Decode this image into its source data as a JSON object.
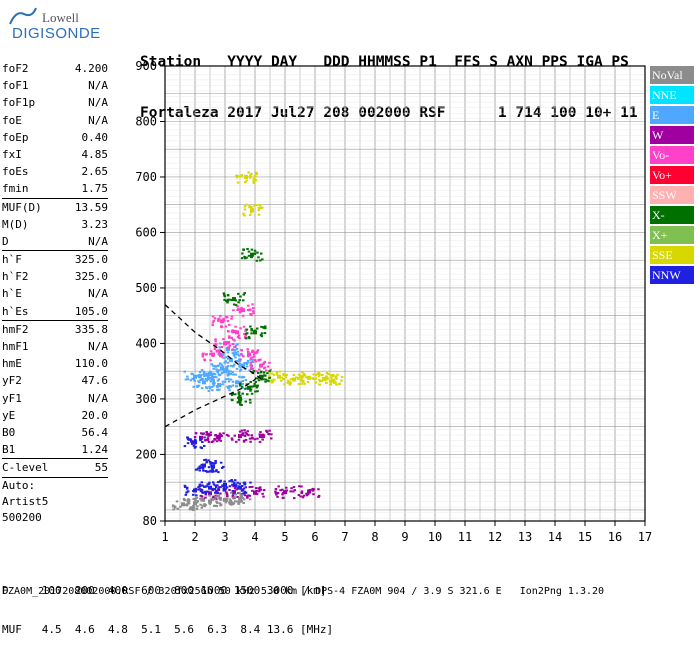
{
  "logo": {
    "line1": "Lowell",
    "line2": "DIGISONDE"
  },
  "header": {
    "row1": "Station   YYYY DAY   DDD HHMMSS P1  FFS S AXN PPS IGA PS",
    "row2": "Fortaleza 2017 Jul27 208 002000 RSF      1 714 100 10+ 11"
  },
  "params": {
    "group1": [
      {
        "k": "foF2",
        "v": "4.200"
      },
      {
        "k": "foF1",
        "v": "N/A"
      },
      {
        "k": "foF1p",
        "v": "N/A"
      },
      {
        "k": "foE",
        "v": "N/A"
      },
      {
        "k": "foEp",
        "v": "0.40"
      },
      {
        "k": "fxI",
        "v": "4.85"
      },
      {
        "k": "foEs",
        "v": "2.65"
      },
      {
        "k": "fmin",
        "v": "1.75"
      }
    ],
    "group2": [
      {
        "k": "MUF(D)",
        "v": "13.59"
      },
      {
        "k": "M(D)",
        "v": "3.23"
      },
      {
        "k": "D",
        "v": "N/A"
      }
    ],
    "group3": [
      {
        "k": "h`F",
        "v": "325.0"
      },
      {
        "k": "h`F2",
        "v": "325.0"
      },
      {
        "k": "h`E",
        "v": "N/A"
      },
      {
        "k": "h`Es",
        "v": "105.0"
      }
    ],
    "group4": [
      {
        "k": "hmF2",
        "v": "335.8"
      },
      {
        "k": "hmF1",
        "v": "N/A"
      },
      {
        "k": "hmE",
        "v": "110.0"
      },
      {
        "k": "yF2",
        "v": "47.6"
      },
      {
        "k": "yF1",
        "v": "N/A"
      },
      {
        "k": "yE",
        "v": "20.0"
      },
      {
        "k": "B0",
        "v": "56.4"
      },
      {
        "k": "B1",
        "v": "1.24"
      }
    ],
    "group5": [
      {
        "k": "C-level",
        "v": "55"
      }
    ],
    "auto": [
      "Auto:",
      "Artist5",
      "500200"
    ]
  },
  "footer": {
    "row1": "D     100  200  400  600  800 1000 1500 3000 [km]",
    "row2": "MUF   4.5  4.6  4.8  5.1  5.6  6.3  8.4 13.6 [MHz]"
  },
  "fileline": "FZA0M_2017208002000.RSF / 320fx256h 50 kHz 5.0 km / DPS-4 FZA0M 904 / 3.9 S 321.6 E   Ion2Png 1.3.20",
  "legend": [
    {
      "label": "NoVal",
      "color": "#8c8c8c"
    },
    {
      "label": "NNE",
      "color": "#00e5ff"
    },
    {
      "label": "E",
      "color": "#4fa8ff"
    },
    {
      "label": "W",
      "color": "#a000a0"
    },
    {
      "label": "Vo-",
      "color": "#ff40c8"
    },
    {
      "label": "Vo+",
      "color": "#ff0030"
    },
    {
      "label": "SSW",
      "color": "#ffb0b0"
    },
    {
      "label": "X-",
      "color": "#007000"
    },
    {
      "label": "X+",
      "color": "#80c050"
    },
    {
      "label": "SSE",
      "color": "#d8d800"
    },
    {
      "label": "NNW",
      "color": "#2020e0"
    }
  ],
  "chart_data": {
    "type": "scatter",
    "title": "",
    "xlabel": "",
    "ylabel": "",
    "xlim": [
      1,
      17
    ],
    "ylim": [
      80,
      900
    ],
    "x_ticks": [
      1,
      2,
      3,
      4,
      5,
      6,
      7,
      8,
      9,
      10,
      11,
      12,
      13,
      14,
      15,
      16,
      17
    ],
    "y_ticks": [
      80,
      200,
      300,
      400,
      500,
      600,
      700,
      800,
      900
    ],
    "grid": true,
    "legend_position": "right",
    "series": [
      {
        "name": "E",
        "points": [
          [
            2.0,
            340
          ],
          [
            2.5,
            345
          ],
          [
            3.0,
            350
          ],
          [
            3.2,
            370
          ],
          [
            3.4,
            330
          ],
          [
            2.8,
            325
          ],
          [
            3.6,
            360
          ],
          [
            2.3,
            330
          ],
          [
            3.1,
            390
          ],
          [
            2.9,
            355
          ]
        ]
      },
      {
        "name": "W",
        "points": [
          [
            2.2,
            230
          ],
          [
            2.8,
            232
          ],
          [
            3.5,
            233
          ],
          [
            4.2,
            233
          ],
          [
            2.5,
            130
          ],
          [
            3.3,
            132
          ],
          [
            4.0,
            131
          ],
          [
            5.0,
            132
          ],
          [
            5.8,
            133
          ]
        ]
      },
      {
        "name": "Vo-",
        "points": [
          [
            2.6,
            380
          ],
          [
            3.0,
            400
          ],
          [
            3.4,
            420
          ],
          [
            3.8,
            380
          ],
          [
            4.2,
            360
          ],
          [
            2.9,
            440
          ],
          [
            3.6,
            460
          ]
        ]
      },
      {
        "name": "X-",
        "points": [
          [
            3.5,
            300
          ],
          [
            3.8,
            320
          ],
          [
            4.2,
            340
          ],
          [
            3.3,
            480
          ],
          [
            3.9,
            560
          ],
          [
            4.0,
            420
          ]
        ]
      },
      {
        "name": "SSE",
        "points": [
          [
            4.8,
            340
          ],
          [
            5.3,
            335
          ],
          [
            5.8,
            338
          ],
          [
            6.3,
            336
          ],
          [
            6.6,
            333
          ],
          [
            3.9,
            640
          ],
          [
            3.7,
            700
          ]
        ]
      },
      {
        "name": "NNW",
        "points": [
          [
            2.0,
            135
          ],
          [
            2.5,
            140
          ],
          [
            3.0,
            145
          ],
          [
            3.5,
            140
          ],
          [
            2.0,
            222
          ],
          [
            2.3,
            180
          ],
          [
            2.6,
            178
          ]
        ]
      },
      {
        "name": "NoVal",
        "points": [
          [
            1.6,
            110
          ],
          [
            2.0,
            112
          ],
          [
            2.5,
            115
          ],
          [
            3.0,
            118
          ],
          [
            3.5,
            120
          ]
        ]
      }
    ],
    "profile_curve": [
      [
        1.0,
        250
      ],
      [
        2.0,
        280
      ],
      [
        3.0,
        305
      ],
      [
        3.6,
        320
      ],
      [
        4.0,
        335
      ],
      [
        4.1,
        345
      ]
    ],
    "trace_curve": [
      [
        1.0,
        470
      ],
      [
        2.0,
        420
      ],
      [
        2.8,
        390
      ],
      [
        3.5,
        360
      ],
      [
        4.0,
        345
      ],
      [
        4.2,
        336
      ]
    ]
  }
}
